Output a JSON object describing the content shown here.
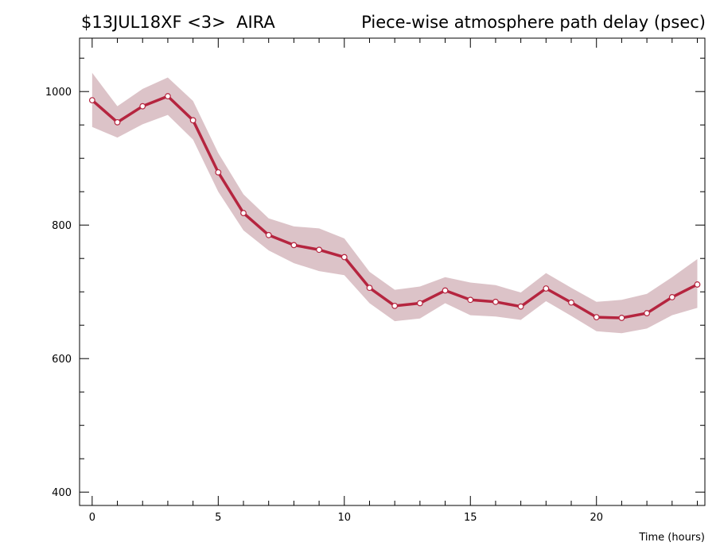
{
  "header": {
    "experiment": "$13JUL18XF <3>",
    "station": "AIRA",
    "title": "Piece-wise atmosphere path delay (psec)"
  },
  "chart_data": {
    "type": "line",
    "title": "Piece-wise atmosphere path delay (psec)",
    "xlabel": "Time (hours)",
    "ylabel": "",
    "xlim": [
      -0.5,
      24.3
    ],
    "ylim": [
      380,
      1080
    ],
    "x_ticks_major": [
      0,
      5,
      10,
      15,
      20
    ],
    "y_ticks_major": [
      400,
      600,
      800,
      1000
    ],
    "grid": false,
    "x": [
      0,
      1,
      2,
      3,
      4,
      5,
      6,
      7,
      8,
      9,
      10,
      11,
      12,
      13,
      14,
      15,
      16,
      17,
      18,
      19,
      20,
      21,
      22,
      23,
      24
    ],
    "series": [
      {
        "values": [
          987,
          954,
          978,
          993,
          957,
          879,
          818,
          785,
          770,
          763,
          752,
          706,
          679,
          683,
          702,
          688,
          685,
          678,
          705,
          684,
          662,
          661,
          668,
          692,
          711
        ],
        "lower": [
          947,
          931,
          951,
          965,
          928,
          850,
          792,
          762,
          743,
          731,
          725,
          683,
          656,
          660,
          683,
          665,
          663,
          658,
          686,
          664,
          641,
          638,
          645,
          665,
          676
        ],
        "upper": [
          1028,
          978,
          1004,
          1021,
          986,
          908,
          846,
          810,
          798,
          795,
          780,
          730,
          703,
          708,
          722,
          714,
          710,
          699,
          728,
          706,
          685,
          688,
          697,
          722,
          749
        ]
      }
    ],
    "colors": {
      "line": "#b5253f",
      "band": "#dcc3c8",
      "marker_fill": "#ffffff"
    }
  }
}
